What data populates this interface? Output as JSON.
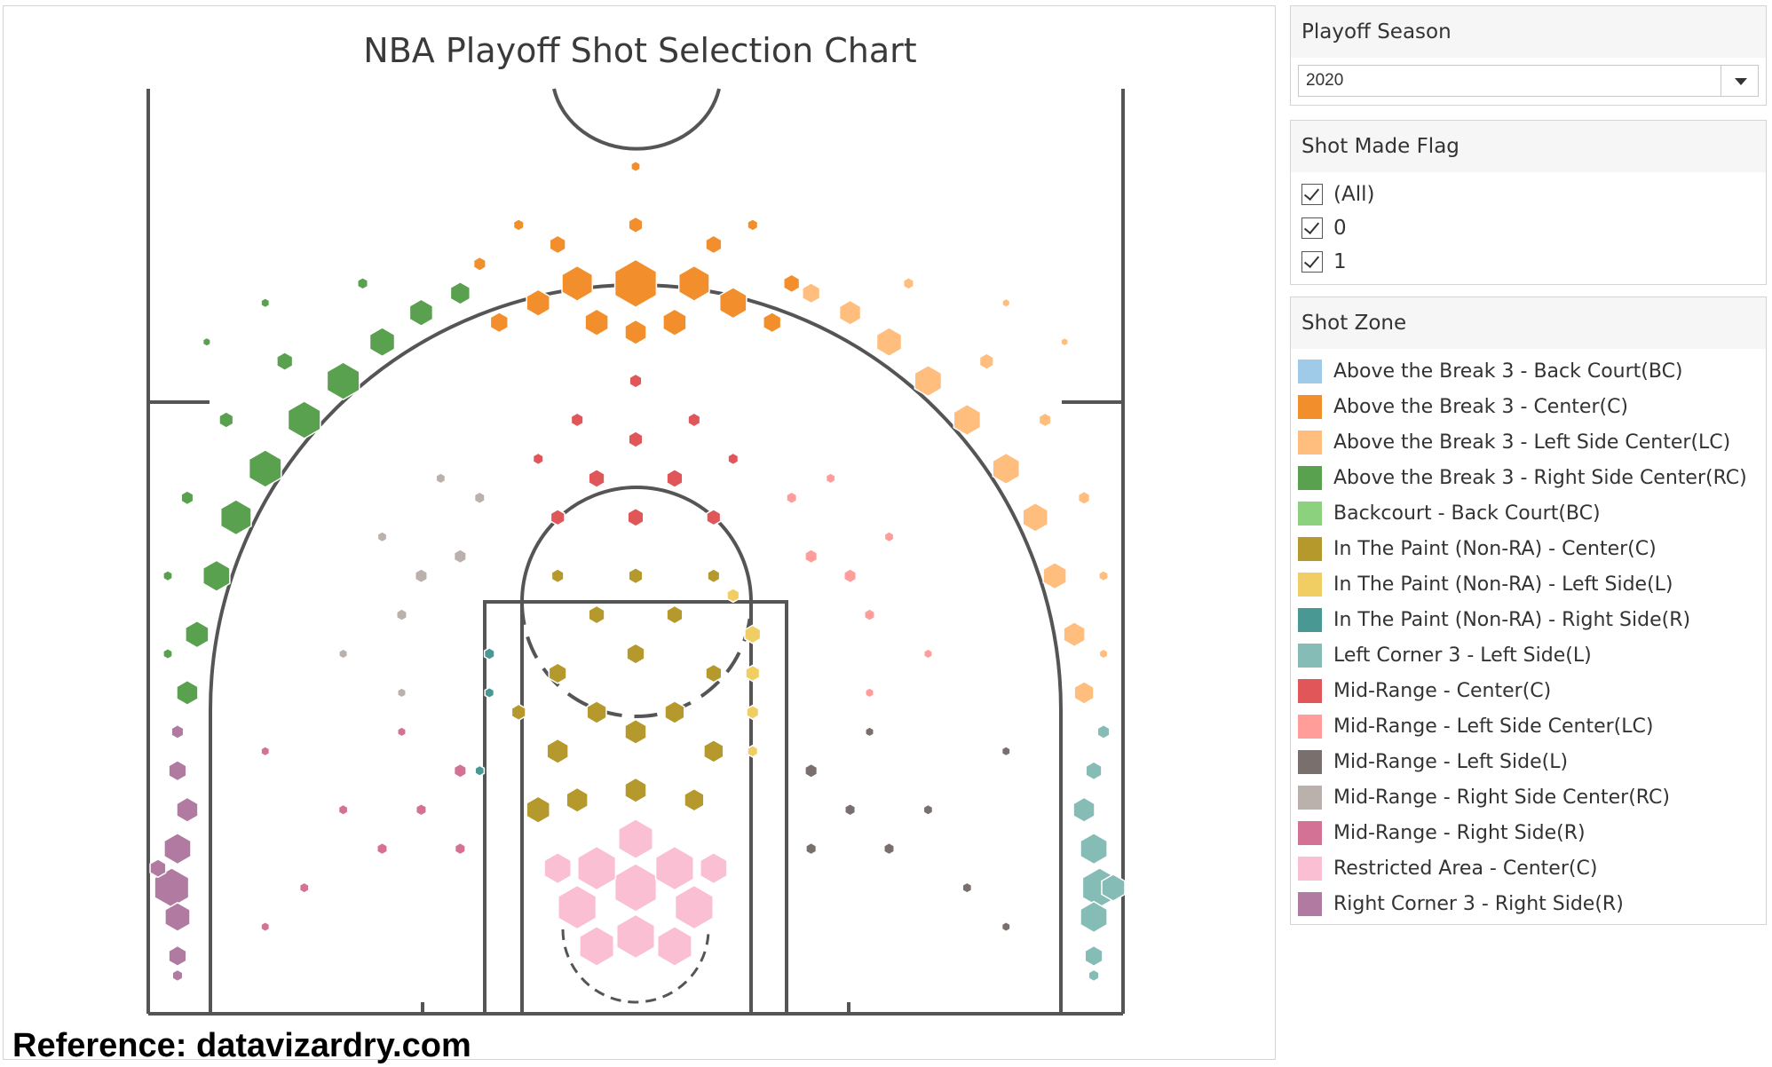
{
  "chart_title": "NBA Playoff Shot Selection Chart",
  "reference_text": "Reference: datavizardry.com",
  "filters": {
    "season": {
      "title": "Playoff Season",
      "selected": "2020"
    },
    "shot_made_flag": {
      "title": "Shot Made Flag",
      "options": [
        "(All)",
        "0",
        "1"
      ]
    }
  },
  "legend": {
    "title": "Shot Zone",
    "items": [
      {
        "label": "Above the Break 3 - Back Court(BC)",
        "color": "#9fcae8"
      },
      {
        "label": "Above the Break 3 - Center(C)",
        "color": "#f28e2b"
      },
      {
        "label": "Above the Break 3 - Left Side Center(LC)",
        "color": "#ffbe7d"
      },
      {
        "label": "Above the Break 3 - Right Side Center(RC)",
        "color": "#59a14f"
      },
      {
        "label": "Backcourt - Back Court(BC)",
        "color": "#8cd17d"
      },
      {
        "label": "In The Paint (Non-RA) - Center(C)",
        "color": "#b6992d"
      },
      {
        "label": "In The Paint (Non-RA) - Left Side(L)",
        "color": "#f1ce63"
      },
      {
        "label": "In The Paint (Non-RA) - Right Side(R)",
        "color": "#499894"
      },
      {
        "label": "Left Corner 3 - Left Side(L)",
        "color": "#86bcb6"
      },
      {
        "label": "Mid-Range - Center(C)",
        "color": "#e15759"
      },
      {
        "label": "Mid-Range - Left Side Center(LC)",
        "color": "#ff9d9a"
      },
      {
        "label": "Mid-Range - Left Side(L)",
        "color": "#79706e"
      },
      {
        "label": "Mid-Range - Right Side Center(RC)",
        "color": "#bab0ac"
      },
      {
        "label": "Mid-Range - Right Side(R)",
        "color": "#d37295"
      },
      {
        "label": "Restricted Area - Center(C)",
        "color": "#fabfd2"
      },
      {
        "label": "Right Corner 3 - Right Side(R)",
        "color": "#b07aa1"
      }
    ]
  },
  "chart_data": {
    "type": "scatter",
    "title": "NBA Playoff Shot Selection Chart",
    "x_range_ft": [
      -25,
      25
    ],
    "y_range_ft": [
      -4,
      47
    ],
    "note_units": "feet from basket (x lateral, y toward half court); size = relative shot volume 0-1",
    "zones": [
      {
        "zone": "Above the Break 3 - Center(C)",
        "shots": [
          [
            0,
            32,
            1.0
          ],
          [
            3,
            32,
            0.7
          ],
          [
            -3,
            32,
            0.7
          ],
          [
            5,
            31,
            0.6
          ],
          [
            -5,
            31,
            0.5
          ],
          [
            0,
            29.5,
            0.45
          ],
          [
            2,
            30,
            0.5
          ],
          [
            -2,
            30,
            0.5
          ],
          [
            7,
            30,
            0.35
          ],
          [
            -7,
            30,
            0.35
          ],
          [
            0,
            35,
            0.25
          ],
          [
            4,
            34,
            0.3
          ],
          [
            -4,
            34,
            0.3
          ],
          [
            8,
            32,
            0.3
          ],
          [
            0,
            38,
            0.12
          ],
          [
            -8,
            33,
            0.2
          ],
          [
            6,
            35,
            0.15
          ],
          [
            -6,
            35,
            0.15
          ]
        ]
      },
      {
        "zone": "Above the Break 3 - Right Side Center(RC)",
        "shots": [
          [
            -15,
            27,
            0.75
          ],
          [
            -17,
            25,
            0.75
          ],
          [
            -19,
            22.5,
            0.75
          ],
          [
            -20.5,
            20,
            0.7
          ],
          [
            -21.5,
            17,
            0.6
          ],
          [
            -22.5,
            14,
            0.5
          ],
          [
            -23,
            11,
            0.45
          ],
          [
            -13,
            29,
            0.55
          ],
          [
            -11,
            30.5,
            0.5
          ],
          [
            -9,
            31.5,
            0.4
          ],
          [
            -18,
            28,
            0.3
          ],
          [
            -21,
            25,
            0.25
          ],
          [
            -23,
            21,
            0.2
          ],
          [
            -14,
            32,
            0.15
          ],
          [
            -24,
            17,
            0.12
          ],
          [
            -24,
            13,
            0.12
          ],
          [
            -19,
            31,
            0.1
          ],
          [
            -22,
            29,
            0.08
          ]
        ]
      },
      {
        "zone": "Above the Break 3 - Left Side Center(LC)",
        "shots": [
          [
            13,
            29,
            0.55
          ],
          [
            15,
            27,
            0.6
          ],
          [
            17,
            25,
            0.6
          ],
          [
            19,
            22.5,
            0.6
          ],
          [
            20.5,
            20,
            0.55
          ],
          [
            21.5,
            17,
            0.5
          ],
          [
            22.5,
            14,
            0.45
          ],
          [
            23,
            11,
            0.4
          ],
          [
            11,
            30.5,
            0.45
          ],
          [
            9,
            31.5,
            0.35
          ],
          [
            18,
            28,
            0.25
          ],
          [
            21,
            25,
            0.2
          ],
          [
            23,
            21,
            0.18
          ],
          [
            14,
            32,
            0.15
          ],
          [
            24,
            17,
            0.12
          ],
          [
            24,
            13,
            0.1
          ],
          [
            19,
            31,
            0.08
          ],
          [
            22,
            29,
            0.07
          ]
        ]
      },
      {
        "zone": "Right Corner 3 - Right Side(R)",
        "shots": [
          [
            -23.8,
            1,
            0.8
          ],
          [
            -23.5,
            3,
            0.6
          ],
          [
            -23.5,
            -0.5,
            0.55
          ],
          [
            -23,
            5,
            0.45
          ],
          [
            -23.5,
            7,
            0.35
          ],
          [
            -23.5,
            -2.5,
            0.35
          ],
          [
            -24.5,
            2,
            0.3
          ],
          [
            -23.5,
            9,
            0.2
          ],
          [
            -23.5,
            -3.5,
            0.15
          ]
        ]
      },
      {
        "zone": "Left Corner 3 - Left Side(L)",
        "shots": [
          [
            23.8,
            1,
            0.8
          ],
          [
            23.5,
            3,
            0.6
          ],
          [
            23.5,
            -0.5,
            0.6
          ],
          [
            23,
            5,
            0.45
          ],
          [
            24.5,
            1,
            0.5
          ],
          [
            23.5,
            7,
            0.3
          ],
          [
            23.5,
            -2.5,
            0.35
          ],
          [
            24,
            9,
            0.2
          ],
          [
            23.5,
            -3.5,
            0.15
          ]
        ]
      },
      {
        "zone": "Restricted Area - Center(C)",
        "shots": [
          [
            0,
            1,
            1.0
          ],
          [
            -2,
            2,
            0.9
          ],
          [
            2,
            2,
            0.9
          ],
          [
            -3,
            0,
            0.9
          ],
          [
            3,
            0,
            0.9
          ],
          [
            0,
            -1.5,
            0.9
          ],
          [
            -2,
            -2,
            0.8
          ],
          [
            2,
            -2,
            0.8
          ],
          [
            0,
            3.5,
            0.8
          ],
          [
            -4,
            2,
            0.6
          ],
          [
            4,
            2,
            0.6
          ]
        ]
      },
      {
        "zone": "In The Paint (Non-RA) - Center(C)",
        "shots": [
          [
            -5,
            5,
            0.5
          ],
          [
            -3,
            5.5,
            0.45
          ],
          [
            0,
            6,
            0.45
          ],
          [
            3,
            5.5,
            0.4
          ],
          [
            -4,
            8,
            0.45
          ],
          [
            0,
            9,
            0.45
          ],
          [
            4,
            8,
            0.4
          ],
          [
            -2,
            10,
            0.4
          ],
          [
            2,
            10,
            0.4
          ],
          [
            -4,
            12,
            0.35
          ],
          [
            0,
            13,
            0.35
          ],
          [
            4,
            12,
            0.3
          ],
          [
            -2,
            15,
            0.3
          ],
          [
            2,
            15,
            0.3
          ],
          [
            0,
            17,
            0.25
          ],
          [
            -4,
            17,
            0.2
          ],
          [
            4,
            17,
            0.2
          ],
          [
            -6,
            10,
            0.25
          ]
        ]
      },
      {
        "zone": "In The Paint (Non-RA) - Left Side(L)",
        "shots": [
          [
            6,
            14,
            0.3
          ],
          [
            6,
            12,
            0.25
          ],
          [
            6,
            10,
            0.2
          ],
          [
            5,
            16,
            0.2
          ],
          [
            6,
            8,
            0.15
          ]
        ]
      },
      {
        "zone": "In The Paint (Non-RA) - Right Side(R)",
        "shots": [
          [
            -7.5,
            13,
            0.15
          ],
          [
            -7.5,
            11,
            0.12
          ],
          [
            -8,
            7,
            0.12
          ]
        ]
      },
      {
        "zone": "Mid-Range - Center(C)",
        "shots": [
          [
            0,
            20,
            0.3
          ],
          [
            -2,
            22,
            0.3
          ],
          [
            2,
            22,
            0.3
          ],
          [
            0,
            24,
            0.25
          ],
          [
            -4,
            20,
            0.25
          ],
          [
            4,
            20,
            0.25
          ],
          [
            -3,
            25,
            0.2
          ],
          [
            3,
            25,
            0.2
          ],
          [
            0,
            27,
            0.2
          ],
          [
            -5,
            23,
            0.15
          ],
          [
            5,
            23,
            0.15
          ]
        ]
      },
      {
        "zone": "Mid-Range - Right Side Center(RC)",
        "shots": [
          [
            -9,
            18,
            0.2
          ],
          [
            -11,
            17,
            0.2
          ],
          [
            -12,
            15,
            0.15
          ],
          [
            -8,
            21,
            0.15
          ],
          [
            -10,
            22,
            0.12
          ],
          [
            -13,
            19,
            0.12
          ],
          [
            -12,
            11,
            0.1
          ],
          [
            -15,
            13,
            0.1
          ]
        ]
      },
      {
        "zone": "Mid-Range - Left Side Center(LC)",
        "shots": [
          [
            9,
            18,
            0.2
          ],
          [
            11,
            17,
            0.2
          ],
          [
            12,
            15,
            0.15
          ],
          [
            8,
            21,
            0.15
          ],
          [
            10,
            22,
            0.12
          ],
          [
            13,
            19,
            0.12
          ],
          [
            12,
            11,
            0.1
          ],
          [
            15,
            13,
            0.1
          ]
        ]
      },
      {
        "zone": "Mid-Range - Right Side(R)",
        "shots": [
          [
            -9,
            7,
            0.2
          ],
          [
            -11,
            5,
            0.15
          ],
          [
            -13,
            3,
            0.15
          ],
          [
            -9,
            3,
            0.15
          ],
          [
            -15,
            5,
            0.12
          ],
          [
            -17,
            1,
            0.12
          ],
          [
            -19,
            8,
            0.1
          ],
          [
            -12,
            9,
            0.1
          ],
          [
            -19,
            -1,
            0.1
          ]
        ]
      },
      {
        "zone": "Mid-Range - Left Side(L)",
        "shots": [
          [
            9,
            7,
            0.2
          ],
          [
            11,
            5,
            0.15
          ],
          [
            13,
            3,
            0.15
          ],
          [
            9,
            3,
            0.15
          ],
          [
            15,
            5,
            0.12
          ],
          [
            17,
            1,
            0.12
          ],
          [
            19,
            8,
            0.1
          ],
          [
            12,
            9,
            0.1
          ],
          [
            19,
            -1,
            0.1
          ]
        ]
      }
    ]
  }
}
